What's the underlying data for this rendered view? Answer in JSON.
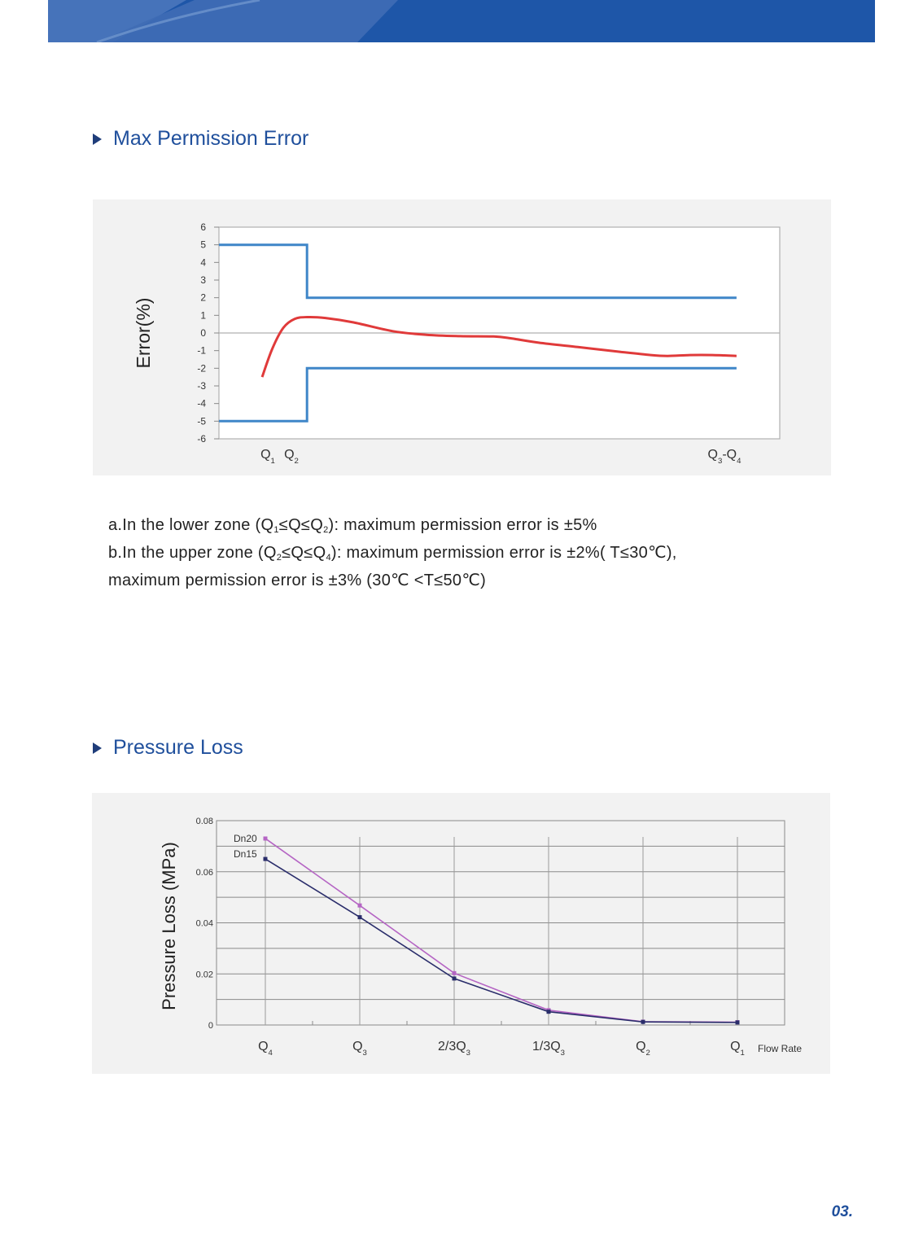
{
  "page": {
    "page_number": "03.",
    "accent_color": "#1f4f9c",
    "banner_color": "#1e56a8"
  },
  "sections": {
    "error": {
      "title": "Max Permission Error"
    },
    "pressure": {
      "title": "Pressure Loss"
    }
  },
  "description": {
    "line_a": {
      "prefix": "a.In the lower zone (Q",
      "sub1": "1",
      "mid1": "≤Q≤Q",
      "sub2": "2",
      "suffix": "): maximum permission error is ±5%"
    },
    "line_b": {
      "prefix": "b.In the upper zone (Q",
      "sub1": "2",
      "mid1": "≤Q≤Q",
      "sub2": "4",
      "suffix": "): maximum permission error is ±2%( T≤30℃),"
    },
    "line_c": {
      "text": "maximum permission error is ±3% (30℃ <T≤50℃)"
    }
  },
  "chart_data": [
    {
      "type": "line",
      "ylabel": "Error(%)",
      "ylim": [
        -6,
        6
      ],
      "yticks": [
        "6",
        "5",
        "4",
        "3",
        "2",
        "1",
        "0",
        "-1",
        "-2",
        "-3",
        "-4",
        "-5",
        "-6"
      ],
      "x_labels": [
        {
          "main": "Q",
          "sub": "1"
        },
        {
          "main": "Q",
          "sub": "2"
        },
        {
          "main": "Q",
          "sub": "3",
          "dash": "-Q",
          "sub2": "4"
        }
      ],
      "colors": {
        "limit": "#3f86c8",
        "curve": "#e03a3a",
        "axis": "#b0b0b0"
      },
      "x_range": [
        0,
        100
      ],
      "upper_limit": [
        [
          0,
          5
        ],
        [
          15.7,
          5
        ],
        [
          15.7,
          2
        ],
        [
          92.3,
          2
        ]
      ],
      "lower_limit": [
        [
          0,
          -5
        ],
        [
          15.7,
          -5
        ],
        [
          15.7,
          -2
        ],
        [
          92.3,
          -2
        ]
      ],
      "curve": [
        [
          7.7,
          -2.5
        ],
        [
          9.5,
          -0.9
        ],
        [
          11.5,
          0.3
        ],
        [
          13.5,
          0.8
        ],
        [
          15.7,
          0.9
        ],
        [
          19,
          0.85
        ],
        [
          24,
          0.6
        ],
        [
          31,
          0.1
        ],
        [
          37,
          -0.1
        ],
        [
          43,
          -0.18
        ],
        [
          49,
          -0.2
        ],
        [
          52,
          -0.3
        ],
        [
          57,
          -0.55
        ],
        [
          64,
          -0.8
        ],
        [
          71,
          -1.05
        ],
        [
          77,
          -1.25
        ],
        [
          80,
          -1.3
        ],
        [
          84,
          -1.25
        ],
        [
          88,
          -1.25
        ],
        [
          92.3,
          -1.3
        ]
      ]
    },
    {
      "type": "line",
      "ylabel": "Pressure Loss (MPa)",
      "xlabel": "Flow Rate",
      "ylim": [
        0,
        0.08
      ],
      "yticks": [
        "0.08",
        "0.06",
        "0.04",
        "0.02",
        "0"
      ],
      "categories": [
        {
          "main": "Q",
          "sub": "4"
        },
        {
          "main": "Q",
          "sub": "3"
        },
        {
          "main": "2/3Q",
          "sub": "3"
        },
        {
          "main": "1/3Q",
          "sub": "3"
        },
        {
          "main": "Q",
          "sub": "2"
        },
        {
          "main": "Q",
          "sub": "1"
        }
      ],
      "series": [
        {
          "name": "Dn20",
          "color": "#b565c4",
          "values": [
            0.073,
            0.0468,
            0.0203,
            0.0058,
            0.0013,
            0.0011
          ]
        },
        {
          "name": "Dn15",
          "color": "#2a2d6b",
          "values": [
            0.065,
            0.0422,
            0.0182,
            0.0052,
            0.0012,
            0.001
          ]
        }
      ]
    }
  ]
}
